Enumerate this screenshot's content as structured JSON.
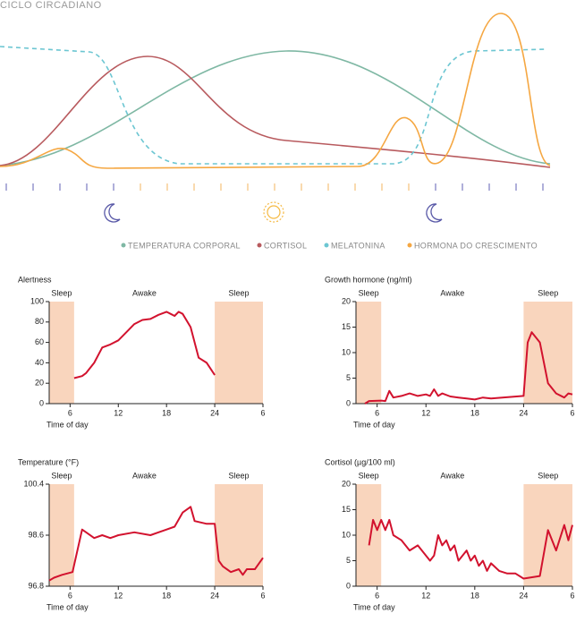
{
  "illustration": {
    "title": "CICLO CIRCADIANO",
    "legend": [
      {
        "name": "TEMPERATURA CORPORAL",
        "color": "#7fb8a4"
      },
      {
        "name": "CORTISOL",
        "color": "#b85a5e"
      },
      {
        "name": "MELATONINA",
        "color": "#6cc6d2"
      },
      {
        "name": "HORMONA DO CRESCIMENTO",
        "color": "#f5a742"
      }
    ]
  },
  "chart_data": [
    {
      "type": "line",
      "title": "Alertness",
      "xlabel": "Time of day",
      "color": "#d2122e",
      "band_color": "#f9d5bd",
      "bands": [
        {
          "label": "Sleep",
          "from": 3.4,
          "to": 6.5,
          "shaded": true
        },
        {
          "label": "Awake",
          "from": 6.5,
          "to": 24,
          "shaded": false
        },
        {
          "label": "Sleep",
          "from": 24,
          "to": 30,
          "shaded": true
        }
      ],
      "xlim": [
        3.4,
        30
      ],
      "xticks": [
        6,
        12,
        18,
        24,
        {
          "value": 30,
          "label": "6"
        }
      ],
      "ylim": [
        0,
        100
      ],
      "yticks": [
        0,
        20,
        40,
        60,
        80,
        100
      ],
      "x": [
        6.5,
        7.5,
        8,
        9,
        10,
        11,
        12,
        13,
        14,
        15,
        16,
        17,
        18,
        18.5,
        19,
        19.5,
        20,
        21,
        21.5,
        22,
        23,
        24
      ],
      "values": [
        25,
        27,
        30,
        40,
        55,
        58,
        62,
        70,
        78,
        82,
        83,
        87,
        90,
        88,
        86,
        90,
        88,
        75,
        60,
        45,
        40,
        28
      ]
    },
    {
      "type": "line",
      "title": "Growth hormone (ng/ml)",
      "xlabel": "Time of day",
      "color": "#d2122e",
      "band_color": "#f9d5bd",
      "bands": [
        {
          "label": "Sleep",
          "from": 3.4,
          "to": 6.5,
          "shaded": true
        },
        {
          "label": "Awake",
          "from": 6.5,
          "to": 24,
          "shaded": false
        },
        {
          "label": "Sleep",
          "from": 24,
          "to": 30,
          "shaded": true
        }
      ],
      "xlim": [
        3.4,
        30
      ],
      "xticks": [
        6,
        12,
        18,
        24,
        {
          "value": 30,
          "label": "6"
        }
      ],
      "ylim": [
        0,
        20
      ],
      "yticks": [
        0,
        5,
        10,
        15,
        20
      ],
      "x": [
        4.5,
        5,
        6.5,
        7,
        7.5,
        8,
        9,
        10,
        11,
        12,
        12.5,
        13,
        13.5,
        14,
        15,
        16,
        17,
        18,
        19,
        20,
        24,
        24.5,
        25,
        26,
        27,
        28,
        29,
        29.5,
        30
      ],
      "values": [
        0,
        0.5,
        0.6,
        0.5,
        2.5,
        1.2,
        1.5,
        2,
        1.5,
        1.8,
        1.5,
        2.8,
        1.5,
        2,
        1.4,
        1.2,
        1,
        0.8,
        1.2,
        1,
        1.5,
        12,
        14,
        12,
        4,
        2,
        1.2,
        2,
        1.8
      ]
    },
    {
      "type": "line",
      "title": "Temperature (°F)",
      "xlabel": "Time of day",
      "color": "#d2122e",
      "band_color": "#f9d5bd",
      "bands": [
        {
          "label": "Sleep",
          "from": 3.4,
          "to": 6.5,
          "shaded": true
        },
        {
          "label": "Awake",
          "from": 6.5,
          "to": 24,
          "shaded": false
        },
        {
          "label": "Sleep",
          "from": 24,
          "to": 30,
          "shaded": true
        }
      ],
      "xlim": [
        3.4,
        30
      ],
      "xticks": [
        6,
        12,
        18,
        24,
        {
          "value": 30,
          "label": "6"
        }
      ],
      "ylim": [
        96.8,
        100.4
      ],
      "yticks": [
        96.8,
        98.6,
        100.4
      ],
      "x": [
        3.4,
        4,
        5,
        6.3,
        7.5,
        8,
        9,
        10,
        11,
        12,
        14,
        16,
        17,
        18,
        19,
        20,
        21,
        21.5,
        23,
        24,
        24.5,
        25,
        26,
        27,
        27.5,
        28,
        29,
        30
      ],
      "values": [
        97.0,
        97.1,
        97.2,
        97.3,
        98.8,
        98.7,
        98.5,
        98.6,
        98.5,
        98.6,
        98.7,
        98.6,
        98.7,
        98.8,
        98.9,
        99.4,
        99.6,
        99.1,
        99.0,
        99.0,
        97.7,
        97.5,
        97.3,
        97.4,
        97.2,
        97.4,
        97.4,
        97.8
      ]
    },
    {
      "type": "line",
      "title": "Cortisol (µg/100 ml)",
      "xlabel": "Time of day",
      "color": "#d2122e",
      "band_color": "#f9d5bd",
      "bands": [
        {
          "label": "Sleep",
          "from": 3.4,
          "to": 6.5,
          "shaded": true
        },
        {
          "label": "Awake",
          "from": 6.5,
          "to": 24,
          "shaded": false
        },
        {
          "label": "Sleep",
          "from": 24,
          "to": 30,
          "shaded": true
        }
      ],
      "xlim": [
        3.4,
        30
      ],
      "xticks": [
        6,
        12,
        18,
        24,
        {
          "value": 30,
          "label": "6"
        }
      ],
      "ylim": [
        0,
        20
      ],
      "yticks": [
        0,
        5,
        10,
        15,
        20
      ],
      "x": [
        5,
        5.5,
        6,
        6.5,
        7,
        7.5,
        8,
        9,
        10,
        11,
        12,
        12.5,
        13,
        13.5,
        14,
        14.5,
        15,
        15.5,
        16,
        17,
        17.5,
        18,
        18.5,
        19,
        19.5,
        20,
        21,
        22,
        23,
        24,
        26,
        27,
        28,
        29,
        29.5,
        30
      ],
      "values": [
        8,
        13,
        11,
        13,
        11,
        13,
        10,
        9,
        7,
        8,
        6,
        5,
        6,
        10,
        8,
        9,
        7,
        8,
        5,
        7,
        5,
        6,
        4,
        5,
        3,
        4.5,
        3,
        2.5,
        2.5,
        1.5,
        2,
        11,
        7,
        12,
        9,
        12
      ]
    }
  ]
}
